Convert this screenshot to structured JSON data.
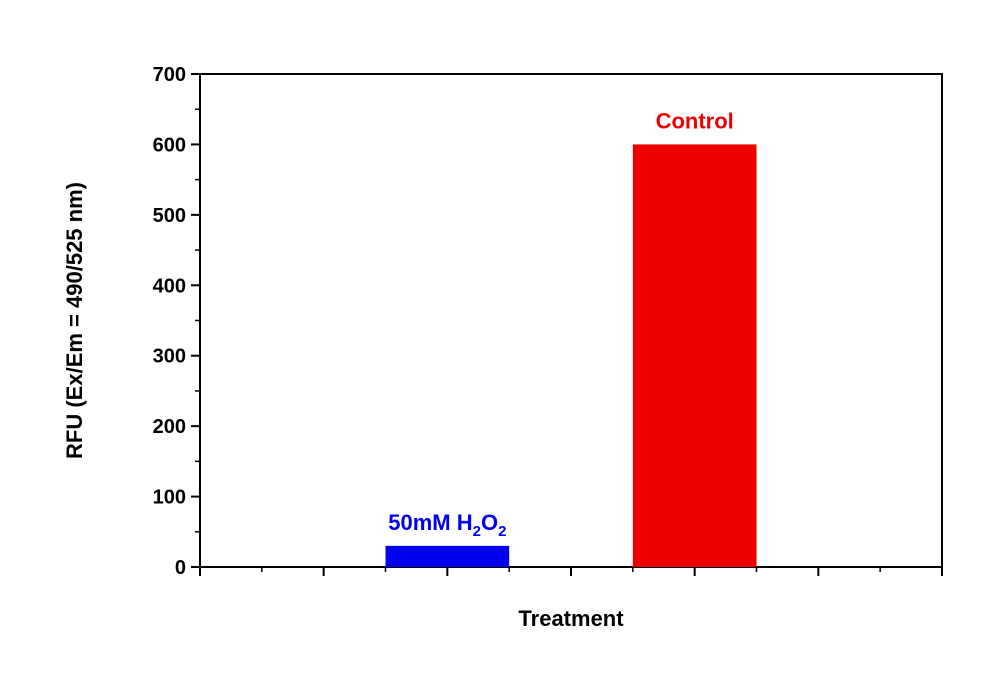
{
  "chart_data": {
    "type": "bar",
    "categories": [
      "50mM H2O2",
      "Control"
    ],
    "values": [
      30,
      600
    ],
    "colors": [
      "#0000ee",
      "#ee0000"
    ],
    "bar_labels": [
      {
        "parts": [
          {
            "t": "50mM H"
          },
          {
            "t": "2",
            "sub": true
          },
          {
            "t": "O"
          },
          {
            "t": "2",
            "sub": true
          }
        ]
      },
      {
        "parts": [
          {
            "t": "Control"
          }
        ]
      }
    ],
    "title": "",
    "xlabel": "Treatment",
    "ylabel": "RFU (Ex/Em = 490/525 nm)",
    "ylim": [
      0,
      700
    ],
    "yticks": [
      0,
      100,
      200,
      300,
      400,
      500,
      600,
      700
    ],
    "grid": false,
    "legend": "none"
  }
}
